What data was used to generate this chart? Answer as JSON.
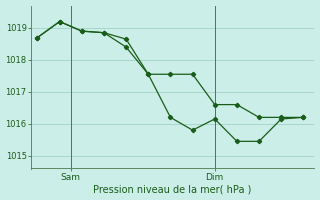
{
  "xlabel": "Pression niveau de la mer( hPa )",
  "background_color": "#cceee8",
  "line_color": "#1a5c1a",
  "grid_color": "#99ccbb",
  "axis_color": "#4a7a4a",
  "ylim": [
    1014.6,
    1019.7
  ],
  "yticks": [
    1015,
    1016,
    1017,
    1018,
    1019
  ],
  "line1_x": [
    0,
    1,
    2,
    3,
    4,
    5,
    6,
    7,
    8,
    9,
    10,
    11,
    12
  ],
  "line1_y": [
    1018.7,
    1019.2,
    1018.9,
    1018.85,
    1018.65,
    1017.55,
    1016.2,
    1015.8,
    1016.15,
    1015.45,
    1015.45,
    1016.15,
    1016.2
  ],
  "line2_x": [
    0,
    1,
    2,
    3,
    4,
    5,
    6,
    7,
    8,
    9,
    10,
    11,
    12
  ],
  "line2_y": [
    1018.7,
    1019.2,
    1018.9,
    1018.85,
    1018.4,
    1017.55,
    1017.55,
    1017.55,
    1016.6,
    1016.6,
    1016.2,
    1016.2,
    1016.2
  ],
  "sam_x": 1.5,
  "dim_x": 8.0,
  "xlim": [
    -0.3,
    12.5
  ]
}
